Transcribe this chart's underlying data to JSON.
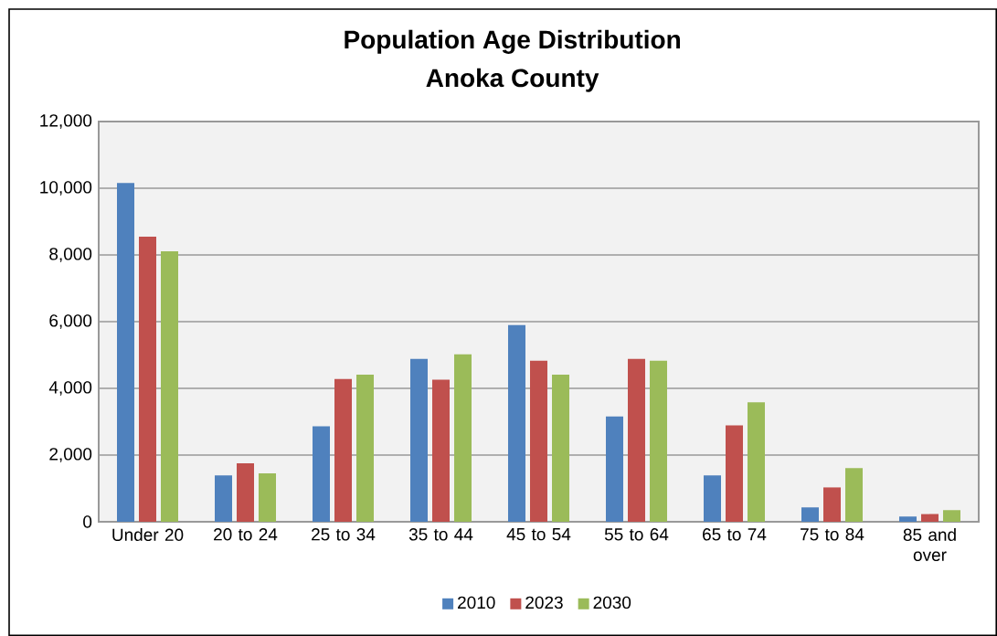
{
  "chart_data": {
    "type": "bar",
    "title": "Population Age Distribution",
    "subtitle": "Anoka County",
    "categories": [
      "Under 20",
      "20 to 24",
      "25 to 34",
      "35 to 44",
      "45 to 54",
      "55 to 64",
      "65 to 74",
      "75 to 84",
      "85 and over"
    ],
    "series": [
      {
        "name": "2010",
        "color": "#4f81bd",
        "values": [
          10160,
          1390,
          2860,
          4880,
          5900,
          3160,
          1390,
          430,
          160
        ]
      },
      {
        "name": "2023",
        "color": "#c0504d",
        "values": [
          8550,
          1750,
          4280,
          4260,
          4830,
          4880,
          2890,
          1030,
          230
        ]
      },
      {
        "name": "2030",
        "color": "#9bbb59",
        "values": [
          8110,
          1450,
          4410,
          5020,
          4410,
          4830,
          3580,
          1610,
          350
        ]
      }
    ],
    "ylim": [
      0,
      12000
    ],
    "yticks": [
      {
        "value": 0,
        "label": "0"
      },
      {
        "value": 2000,
        "label": "2,000"
      },
      {
        "value": 4000,
        "label": "4,000"
      },
      {
        "value": 6000,
        "label": "6,000"
      },
      {
        "value": 8000,
        "label": "8,000"
      },
      {
        "value": 10000,
        "label": "10,000"
      },
      {
        "value": 12000,
        "label": "12,000"
      }
    ],
    "grid": "y",
    "legend": "bottom"
  }
}
